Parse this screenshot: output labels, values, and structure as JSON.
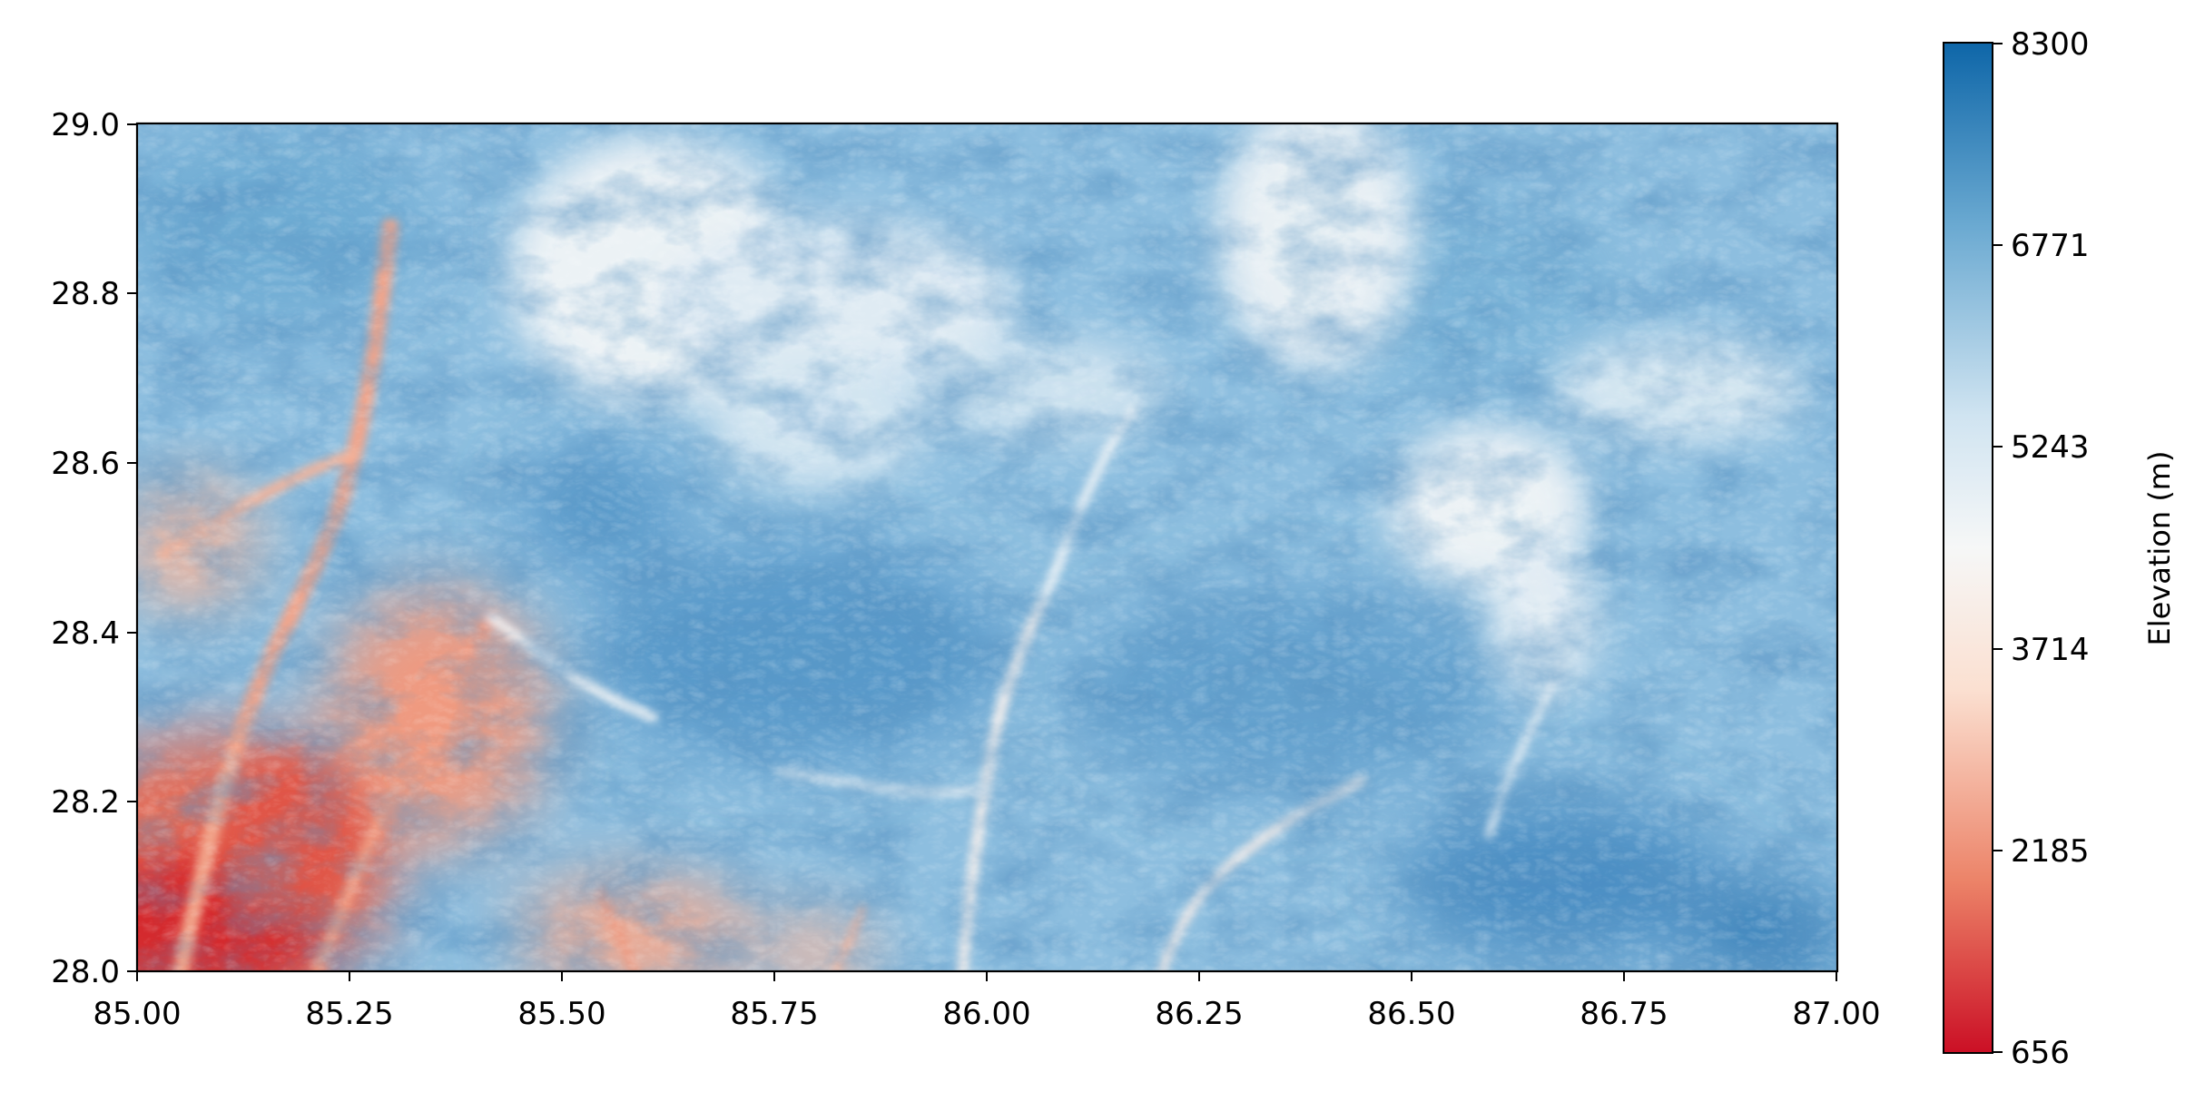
{
  "map": {
    "x_ticks": [
      "85.00",
      "85.25",
      "85.50",
      "85.75",
      "86.00",
      "86.25",
      "86.50",
      "86.75",
      "87.00"
    ],
    "y_ticks": [
      "29.0",
      "28.8",
      "28.6",
      "28.4",
      "28.2",
      "28.0"
    ],
    "x_range": [
      85.0,
      87.0
    ],
    "y_range": [
      28.0,
      29.0
    ],
    "colormap": "RdBu"
  },
  "colorbar": {
    "label": "Elevation (m)",
    "ticks": [
      "8300",
      "6771",
      "5243",
      "3714",
      "2185",
      "656"
    ],
    "range": [
      656,
      8300
    ],
    "colors": [
      "#cb0f25",
      "#ec8368",
      "#fbe0d1",
      "#f6f7f7",
      "#d0e4f1",
      "#6aa9d1",
      "#0e66a8"
    ]
  }
}
